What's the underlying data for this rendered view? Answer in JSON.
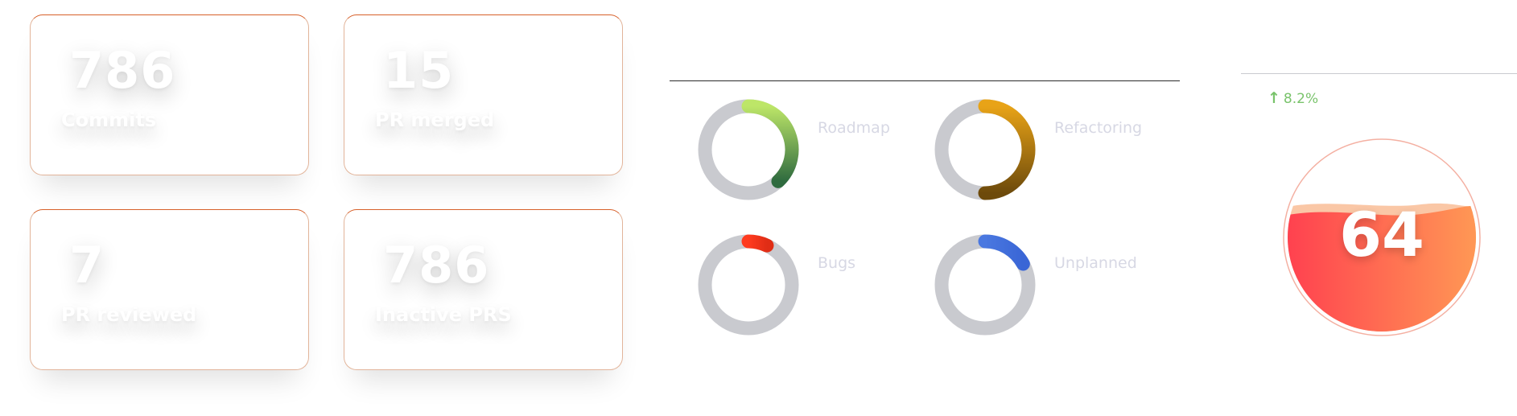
{
  "stats": [
    {
      "value": "786",
      "label": "Commits"
    },
    {
      "value": "15",
      "label": "PR merged"
    },
    {
      "value": "7",
      "label": "PR reviewed"
    },
    {
      "value": "786",
      "label": "Inactive PRS"
    }
  ],
  "categories": [
    {
      "label": "Roadmap",
      "start": 0.0,
      "fraction": 0.38,
      "gradient": [
        "#bde668",
        "#2f6b3f"
      ]
    },
    {
      "label": "Refactoring",
      "start": 0.0,
      "fraction": 0.5,
      "gradient": [
        "#e8a317",
        "#6d4a0b"
      ]
    },
    {
      "label": "Bugs",
      "start": 0.0,
      "fraction": 0.07,
      "gradient": [
        "#ff3b1f",
        "#e02d15"
      ]
    },
    {
      "label": "Unplanned",
      "start": 0.0,
      "fraction": 0.17,
      "gradient": [
        "#4a78e0",
        "#3a66d6"
      ]
    }
  ],
  "trend": {
    "direction": "up",
    "icon": "arrow-up-icon",
    "value": "8.2%"
  },
  "gauge": {
    "value": "64",
    "level": 0.64
  },
  "colors": {
    "card_accent": "#d7602a",
    "track": "#c9cacf",
    "trend": "#79c36b",
    "gauge_start": "#ff3f4f",
    "gauge_end": "#ff9a55"
  }
}
